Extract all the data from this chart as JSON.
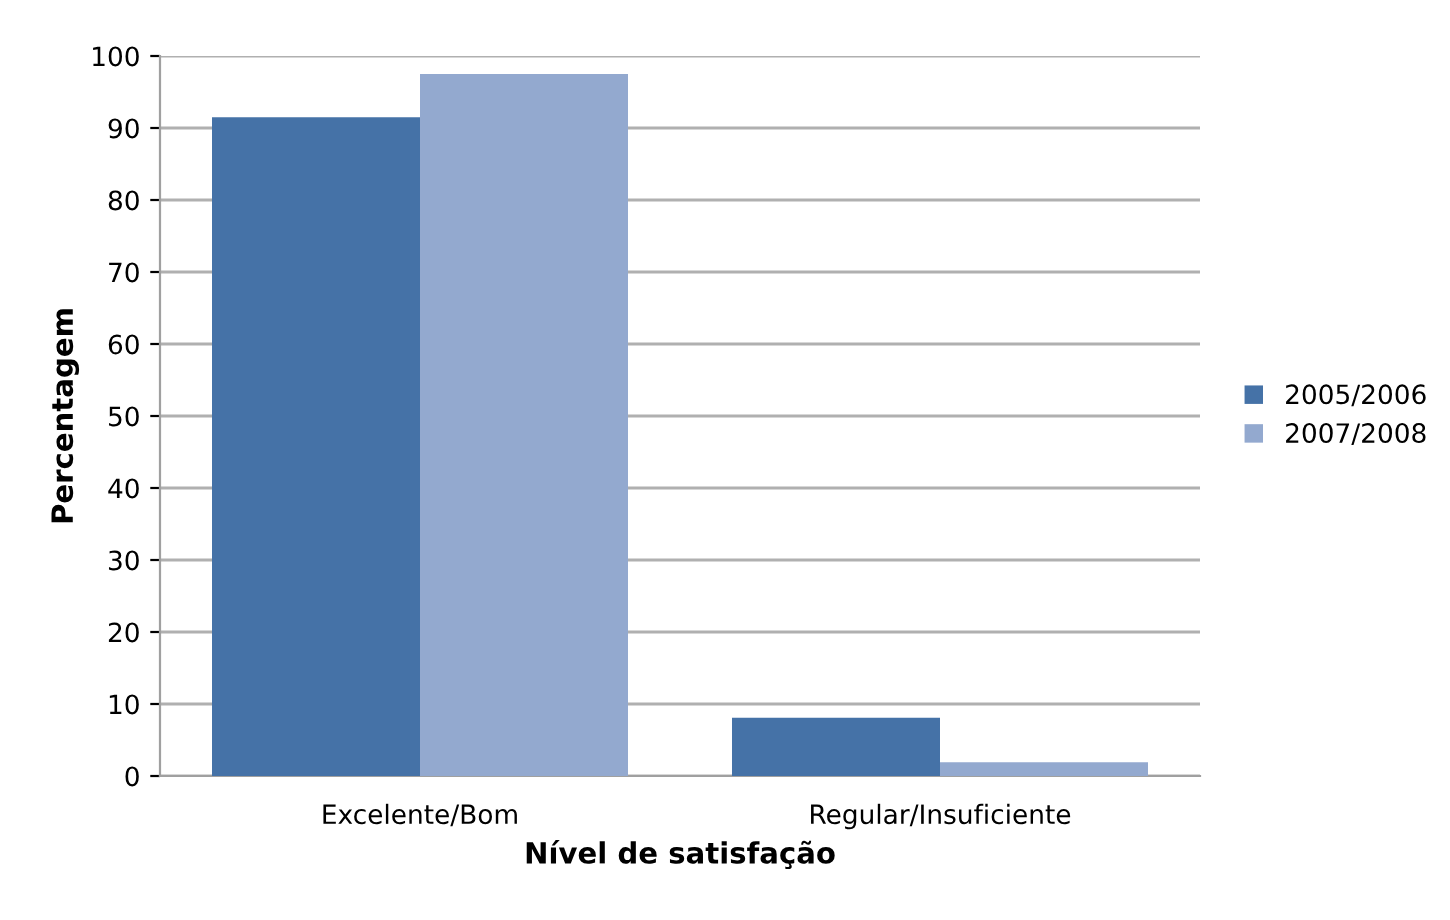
{
  "chart_data": {
    "type": "bar",
    "xlabel": "Nível de satisfação",
    "ylabel": "Percentagem",
    "categories": [
      "Excelente/Bom",
      "Regular/Insuficiente"
    ],
    "series": [
      {
        "name": "2005/2006",
        "color": "#4572a7",
        "values": [
          91.5,
          8.1
        ]
      },
      {
        "name": "2007/2008",
        "color": "#93a9cf",
        "values": [
          97.5,
          1.9
        ]
      }
    ],
    "ylim": [
      0,
      100
    ],
    "yticks": [
      0,
      10,
      20,
      30,
      40,
      50,
      60,
      70,
      80,
      90,
      100
    ],
    "grid": "y",
    "legend": "right"
  }
}
